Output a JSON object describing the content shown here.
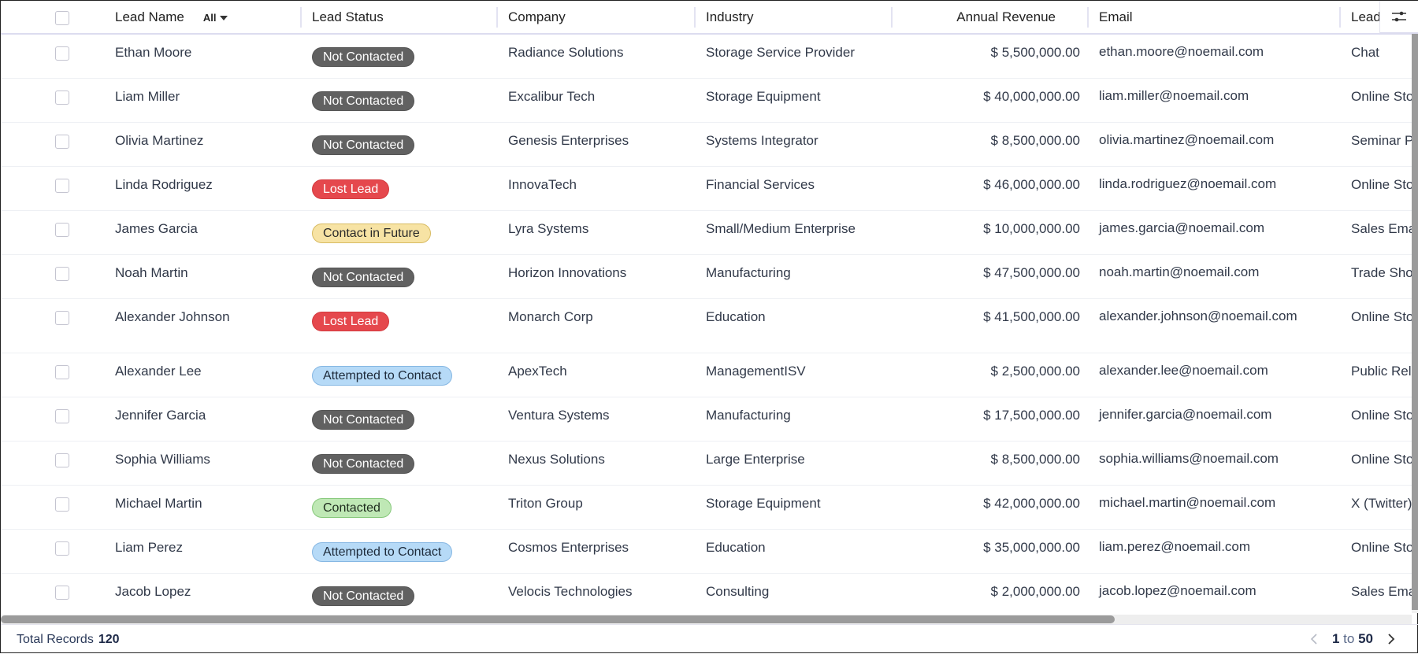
{
  "header": {
    "checkbox": "",
    "columns": [
      "Lead Name",
      "Lead Status",
      "Company",
      "Industry",
      "Annual Revenue",
      "Email",
      "Lead Source"
    ],
    "filter_label": "All"
  },
  "status_colors": {
    "Not Contacted": {
      "bg": "#616161",
      "fg": "#ffffff",
      "border": "#555555"
    },
    "Lost Lead": {
      "bg": "#e5484d",
      "fg": "#ffffff",
      "border": "#d43a3f"
    },
    "Contact in Future": {
      "bg": "#f7e3a4",
      "fg": "#2a2a2a",
      "border": "#d8bb62"
    },
    "Attempted to Contact": {
      "bg": "#b6daf7",
      "fg": "#1d2a3a",
      "border": "#86b7e3"
    },
    "Contacted": {
      "bg": "#bfe8b5",
      "fg": "#1d2a1d",
      "border": "#86c87a"
    }
  },
  "rows": [
    {
      "name": "Ethan Moore",
      "status": "Not Contacted",
      "company": "Radiance Solutions",
      "industry": "Storage Service Provider",
      "revenue": "$ 5,500,000.00",
      "email": "ethan.moore@noemail.com",
      "source": "Chat"
    },
    {
      "name": "Liam Miller",
      "status": "Not Contacted",
      "company": "Excalibur Tech",
      "industry": "Storage Equipment",
      "revenue": "$ 40,000,000.00",
      "email": "liam.miller@noemail.com",
      "source": "Online Store"
    },
    {
      "name": "Olivia Martinez",
      "status": "Not Contacted",
      "company": "Genesis Enterprises",
      "industry": "Systems Integrator",
      "revenue": "$ 8,500,000.00",
      "email": "olivia.martinez@noemail.com",
      "source": "Seminar Partner"
    },
    {
      "name": "Linda Rodriguez",
      "status": "Lost Lead",
      "company": "InnovaTech",
      "industry": "Financial Services",
      "revenue": "$ 46,000,000.00",
      "email": "linda.rodriguez@noemail.com",
      "source": "Online Store"
    },
    {
      "name": "James Garcia",
      "status": "Contact in Future",
      "company": "Lyra Systems",
      "industry": "Small/Medium Enterprise",
      "revenue": "$ 10,000,000.00",
      "email": "james.garcia@noemail.com",
      "source": "Sales Email Alias"
    },
    {
      "name": "Noah Martin",
      "status": "Not Contacted",
      "company": "Horizon Innovations",
      "industry": "Manufacturing",
      "revenue": "$ 47,500,000.00",
      "email": "noah.martin@noemail.com",
      "source": "Trade Show"
    },
    {
      "name": "Alexander Johnson",
      "status": "Lost Lead",
      "company": "Monarch Corp",
      "industry": "Education",
      "revenue": "$ 41,500,000.00",
      "email": "alexander.johnson@noemail.com",
      "source": "Online Store"
    },
    {
      "name": "Alexander Lee",
      "status": "Attempted to Contact",
      "company": "ApexTech",
      "industry": "ManagementISV",
      "revenue": "$ 2,500,000.00",
      "email": "alexander.lee@noemail.com",
      "source": "Public Relations"
    },
    {
      "name": "Jennifer Garcia",
      "status": "Not Contacted",
      "company": "Ventura Systems",
      "industry": "Manufacturing",
      "revenue": "$ 17,500,000.00",
      "email": "jennifer.garcia@noemail.com",
      "source": "Online Store"
    },
    {
      "name": "Sophia Williams",
      "status": "Not Contacted",
      "company": "Nexus Solutions",
      "industry": "Large Enterprise",
      "revenue": "$ 8,500,000.00",
      "email": "sophia.williams@noemail.com",
      "source": "Online Store"
    },
    {
      "name": "Michael Martin",
      "status": "Contacted",
      "company": "Triton Group",
      "industry": "Storage Equipment",
      "revenue": "$ 42,000,000.00",
      "email": "michael.martin@noemail.com",
      "source": "X (Twitter)"
    },
    {
      "name": "Liam Perez",
      "status": "Attempted to Contact",
      "company": "Cosmos Enterprises",
      "industry": "Education",
      "revenue": "$ 35,000,000.00",
      "email": "liam.perez@noemail.com",
      "source": "Online Store"
    },
    {
      "name": "Jacob Lopez",
      "status": "Not Contacted",
      "company": "Velocis Technologies",
      "industry": "Consulting",
      "revenue": "$ 2,000,000.00",
      "email": "jacob.lopez@noemail.com",
      "source": "Sales Email Alias"
    }
  ],
  "footer": {
    "total_label": "Total Records",
    "total_value": "120",
    "page_from": "1",
    "page_to_word": "to",
    "page_to": "50"
  }
}
